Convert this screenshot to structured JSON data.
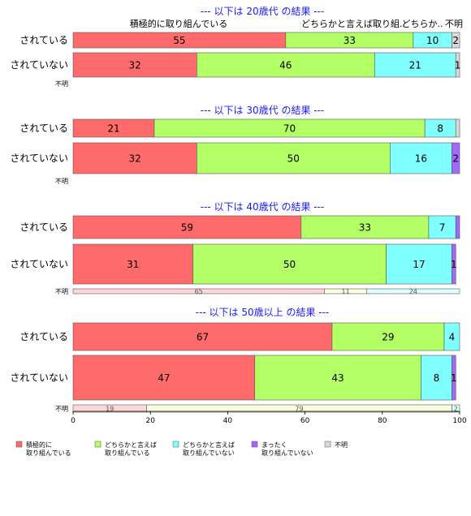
{
  "chart_data": {
    "type": "bar",
    "orientation": "horizontal-stacked",
    "categories": [
      "積極的に\n取り組んでいる",
      "どちらかと言えば\n取り組んでいる",
      "どちらかと言えば\n取り組んでいない",
      "まったく\n取り組んでいない",
      "不明"
    ],
    "colors": [
      "#ff6b6b",
      "#b3ff66",
      "#80ffff",
      "#a366ff",
      "#d9d9d9"
    ],
    "xlim": [
      0,
      100
    ],
    "xticks": [
      0,
      20,
      40,
      60,
      80,
      100
    ],
    "legend_position": "bottom",
    "top_category_labels": [
      "積極的に取り組んでいる",
      "どちらかと言えば取り組..",
      "どちらか..",
      "不明"
    ],
    "groups": [
      {
        "title": "--- 以下は 20歳代 の結果 ---",
        "rows": [
          {
            "label": "されている",
            "values": [
              55,
              33,
              10,
              0,
              2
            ],
            "labels": [
              "55",
              "33",
              "10",
              "",
              "2"
            ]
          },
          {
            "label": "されていない",
            "values": [
              32,
              46,
              21,
              0,
              1
            ],
            "labels": [
              "32",
              "46",
              "21",
              "",
              "1"
            ]
          },
          {
            "label": "不明",
            "small": true,
            "values": [],
            "labels": []
          }
        ]
      },
      {
        "title": "--- 以下は 30歳代 の結果 ---",
        "rows": [
          {
            "label": "されている",
            "values": [
              21,
              70,
              8,
              0,
              1
            ],
            "labels": [
              "21",
              "70",
              "8",
              "",
              ""
            ]
          },
          {
            "label": "されていない",
            "values": [
              32,
              50,
              16,
              2,
              0
            ],
            "labels": [
              "32",
              "50",
              "16",
              "2",
              ""
            ]
          },
          {
            "label": "不明",
            "small": true,
            "values": [],
            "labels": []
          }
        ]
      },
      {
        "title": "--- 以下は 40歳代 の結果 ---",
        "rows": [
          {
            "label": "されている",
            "values": [
              59,
              33,
              7,
              1,
              0
            ],
            "labels": [
              "59",
              "33",
              "7",
              "",
              ""
            ]
          },
          {
            "label": "されていない",
            "values": [
              31,
              50,
              17,
              1,
              0
            ],
            "labels": [
              "31",
              "50",
              "17",
              "1",
              ""
            ]
          },
          {
            "label": "不明",
            "small": true,
            "values": [
              65,
              11,
              24,
              0,
              0
            ],
            "labels": [
              "65",
              "11",
              "24",
              "",
              ""
            ]
          }
        ]
      },
      {
        "title": "--- 以下は 50歳以上 の結果 ---",
        "rows": [
          {
            "label": "されている",
            "values": [
              67,
              29,
              4,
              0,
              0
            ],
            "labels": [
              "67",
              "29",
              "4",
              "",
              ""
            ]
          },
          {
            "label": "されていない",
            "values": [
              47,
              43,
              8,
              1,
              0
            ],
            "labels": [
              "47",
              "43",
              "8",
              "1",
              ""
            ]
          },
          {
            "label": "不明",
            "small": true,
            "values": [
              19,
              79,
              2,
              0,
              0
            ],
            "labels": [
              "19",
              "79",
              "2",
              "",
              ""
            ]
          }
        ]
      }
    ]
  }
}
